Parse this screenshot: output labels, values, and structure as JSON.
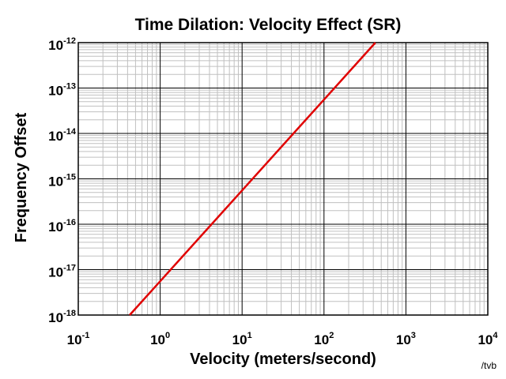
{
  "chart_data": {
    "type": "line",
    "title": "Time Dilation: Velocity Effect (SR)",
    "xlabel": "Velocity (meters/second)",
    "ylabel": "Frequency Offset",
    "x_scale": "log",
    "y_scale": "log",
    "xlim": [
      0.1,
      10000
    ],
    "ylim": [
      1e-18,
      1e-12
    ],
    "x_ticks": [
      {
        "base": "10",
        "exp": "-1"
      },
      {
        "base": "10",
        "exp": "0"
      },
      {
        "base": "10",
        "exp": "1"
      },
      {
        "base": "10",
        "exp": "2"
      },
      {
        "base": "10",
        "exp": "3"
      },
      {
        "base": "10",
        "exp": "4"
      }
    ],
    "y_ticks": [
      {
        "base": "10",
        "exp": "-12"
      },
      {
        "base": "10",
        "exp": "-13"
      },
      {
        "base": "10",
        "exp": "-14"
      },
      {
        "base": "10",
        "exp": "-15"
      },
      {
        "base": "10",
        "exp": "-16"
      },
      {
        "base": "10",
        "exp": "-17"
      },
      {
        "base": "10",
        "exp": "-18"
      }
    ],
    "grid": true,
    "series": [
      {
        "color": "#e00000",
        "x": [
          0.424,
          1,
          10,
          100,
          424
        ],
        "y": [
          1e-18,
          5.56e-18,
          5.56e-16,
          5.56e-14,
          1e-12
        ]
      }
    ]
  },
  "credit": "/tvb",
  "colors": {
    "major_grid": "#000000",
    "minor_grid": "#c0c0c0",
    "line": "#e00000"
  }
}
